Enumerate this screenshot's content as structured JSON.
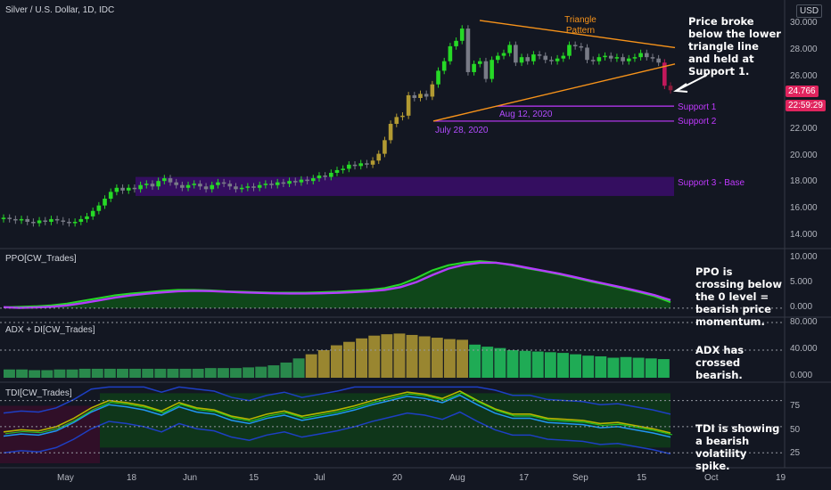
{
  "header": {
    "symbol_title": "Silver / U.S. Dollar, 1D, IDC",
    "currency": "USD"
  },
  "price_axis": {
    "ticks": [
      "30.000",
      "28.000",
      "26.000",
      "24.000",
      "22.000",
      "20.000",
      "18.000",
      "16.000",
      "14.000"
    ]
  },
  "last_price": {
    "value": "24.766",
    "countdown": "22:59:29",
    "color": "#ef5350"
  },
  "date_axis": [
    "May",
    "18",
    "Jun",
    "15",
    "Jul",
    "20",
    "Aug",
    "17",
    "Sep",
    "15",
    "Oct",
    "19"
  ],
  "annotations": {
    "triangle": "Triangle Pattern",
    "july": "July 28, 2020",
    "aug": "Aug 12, 2020",
    "support1": "Support 1",
    "support2": "Support 2",
    "support3": "Support 3 - Base"
  },
  "notes": {
    "price": "Price broke below the lower triangle line and held at Support 1.",
    "ppo": "PPO is crossing below the 0 level = bearish price momentum.",
    "adx": "ADX has crossed bearish.",
    "tdi": "TDI is showing a bearish volatility spike."
  },
  "panes": {
    "ppo": {
      "title": "PPO[CW_Trades]",
      "ticks": [
        "10.000",
        "5.000",
        "0.000"
      ]
    },
    "adx": {
      "title": "ADX + DI[CW_Trades]",
      "ticks": [
        "80.000",
        "40.000",
        "0.000"
      ]
    },
    "tdi": {
      "title": "TDI[CW_Trades]",
      "ticks": [
        "75",
        "50",
        "25"
      ]
    }
  },
  "colors": {
    "background": "#131722",
    "bull": "#26d926",
    "bear": "#787b86",
    "purple": "#c039ff",
    "orange": "#f7931a",
    "gold": "#b29a32",
    "zone": "#3b0d6b"
  },
  "chart_data": [
    {
      "type": "candlestick",
      "title": "Silver / U.S. Dollar, 1D, IDC",
      "ylim": [
        13.2,
        31.4
      ],
      "closes": [
        15.4,
        15.3,
        15.2,
        15.3,
        15.1,
        15.0,
        15.2,
        15.1,
        15.3,
        15.2,
        15.1,
        15.0,
        15.1,
        15.3,
        15.5,
        15.9,
        16.3,
        16.8,
        17.3,
        17.6,
        17.4,
        17.6,
        17.5,
        17.8,
        17.9,
        17.7,
        18.1,
        18.3,
        18.0,
        17.8,
        17.6,
        17.8,
        17.9,
        17.7,
        17.5,
        17.8,
        18.0,
        17.9,
        17.7,
        17.5,
        17.6,
        17.7,
        17.6,
        17.8,
        17.9,
        17.8,
        18.0,
        17.9,
        18.1,
        18.0,
        18.2,
        18.1,
        18.3,
        18.5,
        18.4,
        18.7,
        18.9,
        19.0,
        19.3,
        19.2,
        19.4,
        19.3,
        19.6,
        20.1,
        21.1,
        22.3,
        22.8,
        22.9,
        24.4,
        24.2,
        24.5,
        24.3,
        25.2,
        26.2,
        26.9,
        28.0,
        28.4,
        29.3,
        26.1,
        26.7,
        26.9,
        25.6,
        27.0,
        27.3,
        27.5,
        28.1,
        26.8,
        27.2,
        26.9,
        27.4,
        27.3,
        27.0,
        26.9,
        27.1,
        27.3,
        28.1,
        28.0,
        27.9,
        27.0,
        26.9,
        27.2,
        27.3,
        27.1,
        27.2,
        26.9,
        27.1,
        27.2,
        27.5,
        27.2,
        27.1,
        26.8,
        25.1,
        24.77
      ],
      "x": [
        "May",
        "18",
        "Jun",
        "15",
        "Jul",
        "20",
        "Aug",
        "17",
        "Sep",
        "15",
        "Oct",
        "19"
      ],
      "support_levels": [
        {
          "name": "Support 1",
          "value": 23.6
        },
        {
          "name": "Support 2",
          "value": 22.5
        }
      ],
      "base_zone": {
        "name": "Support 3 - Base",
        "range": [
          17.0,
          18.4
        ]
      },
      "triangle": {
        "name": "Triangle Pattern",
        "upper": [
          29.9,
          27.9
        ],
        "lower": [
          22.5,
          26.7
        ]
      },
      "last": 24.766
    },
    {
      "type": "line",
      "title": "PPO[CW_Trades]",
      "ylim": [
        -1.2,
        11.5
      ],
      "series": [
        {
          "name": "PPO",
          "values": [
            0.2,
            0.3,
            0.4,
            0.6,
            1.0,
            1.6,
            2.2,
            2.8,
            3.2,
            3.5,
            3.8,
            4.0,
            4.0,
            3.9,
            3.7,
            3.6,
            3.5,
            3.4,
            3.4,
            3.4,
            3.5,
            3.6,
            3.8,
            4.0,
            4.4,
            5.2,
            6.6,
            8.3,
            9.4,
            10.0,
            10.3,
            10.0,
            9.4,
            8.7,
            8.1,
            7.4,
            6.6,
            5.8,
            5.1,
            4.3,
            3.5,
            2.6,
            1.3
          ]
        }
      ]
    },
    {
      "type": "bar",
      "title": "ADX + DI[CW_Trades]",
      "ylim": [
        0,
        80
      ],
      "series": [
        {
          "name": "ADX",
          "values": [
            12,
            12,
            11,
            11,
            12,
            12,
            13,
            13,
            13,
            13,
            13,
            13,
            13,
            13,
            13,
            13,
            14,
            14,
            14,
            15,
            16,
            18,
            22,
            28,
            34,
            40,
            47,
            52,
            57,
            61,
            63,
            64,
            62,
            60,
            58,
            56,
            55,
            48,
            45,
            43,
            40,
            39,
            38,
            37,
            36,
            34,
            32,
            31,
            29,
            30,
            29,
            28,
            27
          ]
        }
      ]
    },
    {
      "type": "line",
      "title": "TDI[CW_Trades]",
      "ylim": [
        15,
        90
      ],
      "series": [
        {
          "name": "TDI",
          "values": [
            45,
            47,
            46,
            50,
            58,
            68,
            75,
            73,
            70,
            65,
            73,
            68,
            66,
            60,
            57,
            62,
            65,
            60,
            63,
            66,
            70,
            75,
            79,
            83,
            81,
            77,
            84,
            75,
            67,
            62,
            62,
            58,
            57,
            56,
            53,
            54,
            51,
            48,
            44
          ]
        }
      ]
    }
  ]
}
